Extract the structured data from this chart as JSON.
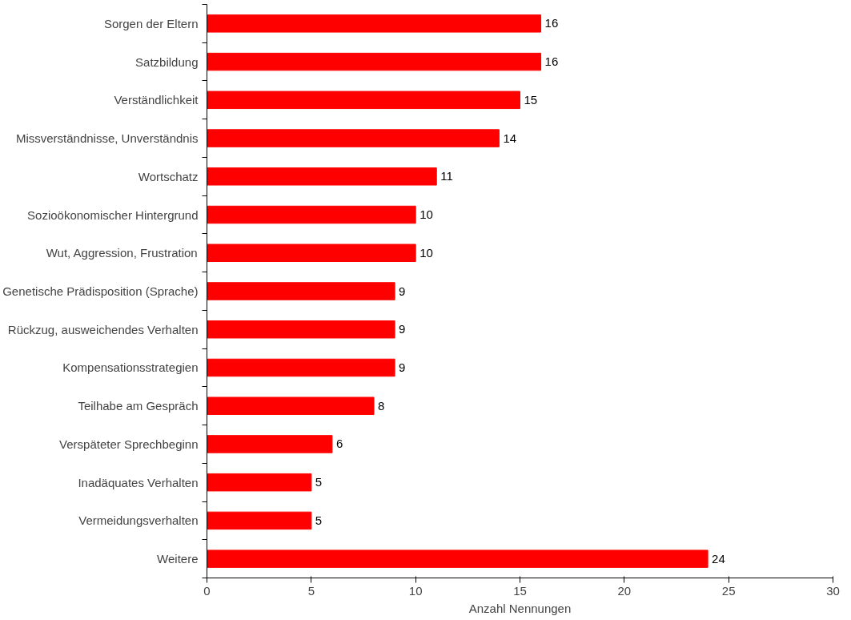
{
  "chart_data": {
    "type": "bar",
    "orientation": "horizontal",
    "xlabel": "Anzahl Nennungen",
    "categories": [
      "Sorgen der Eltern",
      "Satzbildung",
      "Verständlichkeit",
      "Missverständnisse, Unverständnis",
      "Wortschatz",
      "Sozioökonomischer Hintergrund",
      "Wut, Aggression, Frustration",
      "Genetische Prädisposition (Sprache)",
      "Rückzug, ausweichendes Verhalten",
      "Kompensationsstrategien",
      "Teilhabe am Gespräch",
      "Verspäteter Sprechbeginn",
      "Inadäquates Verhalten",
      "Vermeidungsverhalten",
      "Weitere"
    ],
    "values": [
      16,
      16,
      15,
      14,
      11,
      10,
      10,
      9,
      9,
      9,
      8,
      6,
      5,
      5,
      24
    ],
    "color": "#ff0000",
    "xlim": [
      0,
      30
    ],
    "xticks": [
      0,
      5,
      10,
      15,
      20,
      25,
      30
    ],
    "grid": false,
    "data_labels": true
  }
}
